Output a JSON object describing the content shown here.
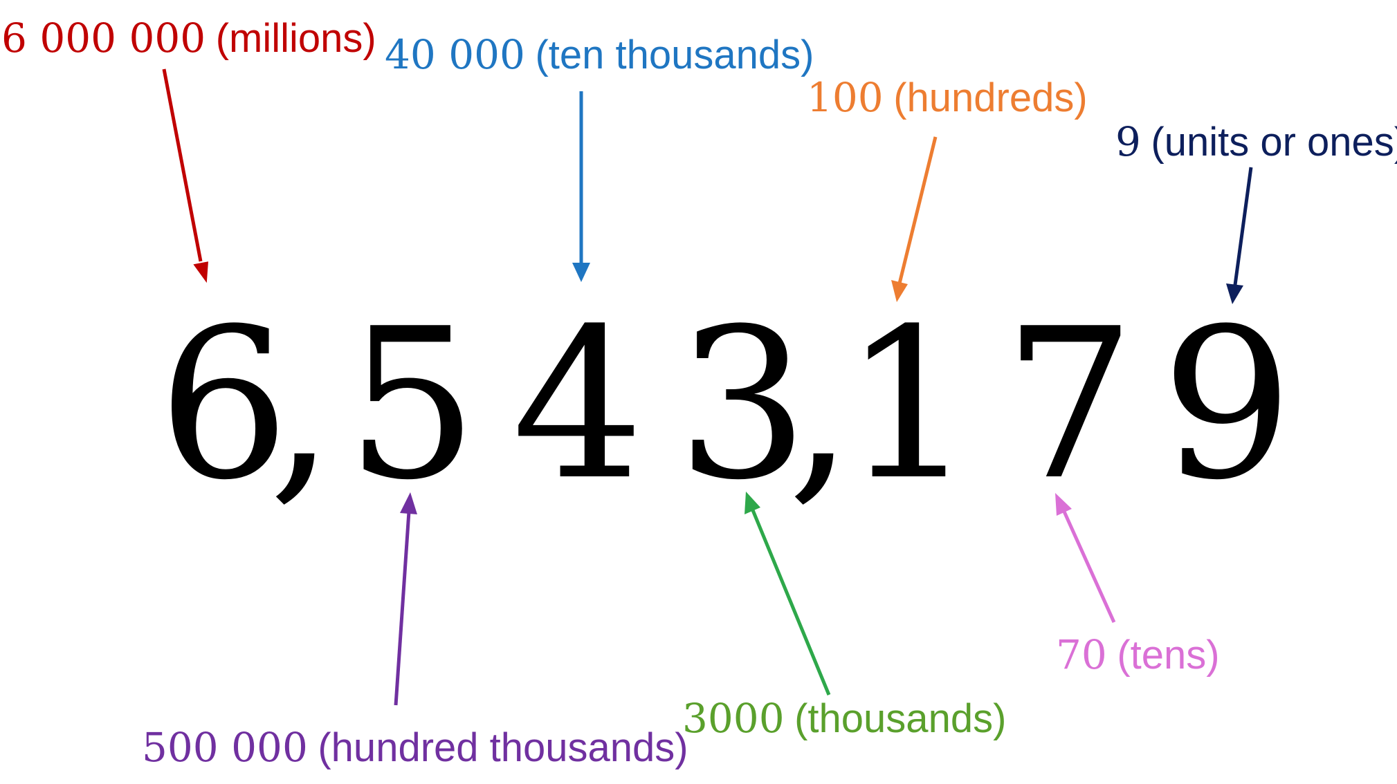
{
  "number": {
    "display": "6,543,179",
    "glyphs": [
      "6",
      ",",
      "5",
      "4",
      "3",
      ",",
      "1",
      "7",
      "9"
    ]
  },
  "labels": {
    "millions": {
      "value": "6 000 000",
      "place": "(millions)",
      "color": "#c00000"
    },
    "ten_thousands": {
      "value": "40 000",
      "place": "(ten thousands)",
      "color": "#1f76c2"
    },
    "hundreds": {
      "value": "100",
      "place": "(hundreds)",
      "color": "#ed7d31"
    },
    "units": {
      "value": "9",
      "place": "(units or ones)",
      "color": "#0d1f5c"
    },
    "hundred_thousands": {
      "value": "500 000",
      "place": "(hundred thousands)",
      "color": "#7030a0"
    },
    "thousands": {
      "value": "3000",
      "place": "(thousands)",
      "color": "#2ea84a",
      "text_color": "#5aa02c"
    },
    "tens": {
      "value": "70",
      "place": "(tens)",
      "color": "#da70d6"
    }
  }
}
